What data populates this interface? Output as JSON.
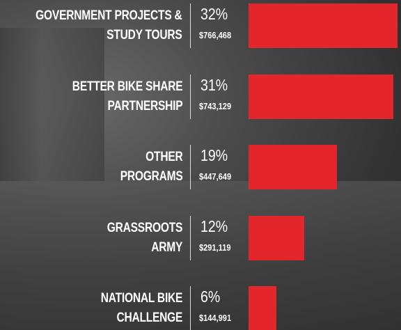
{
  "chart_data": {
    "type": "bar",
    "orientation": "horizontal",
    "color": "#e3262b",
    "categories": [
      "GOVERNMENT PROJECTS &\nSTUDY TOURS",
      "BETTER BIKE SHARE\nPARTNERSHIP",
      "OTHER\nPROGRAMS",
      "GRASSROOTS\nARMY",
      "NATIONAL BIKE\nCHALLENGE"
    ],
    "values": [
      32,
      31,
      19,
      12,
      6
    ],
    "value_labels": [
      "32%",
      "31%",
      "19%",
      "12%",
      "6%"
    ],
    "amount_labels": [
      "$766,468",
      "$743,129",
      "$447,649",
      "$291,119",
      "$144,991"
    ]
  }
}
